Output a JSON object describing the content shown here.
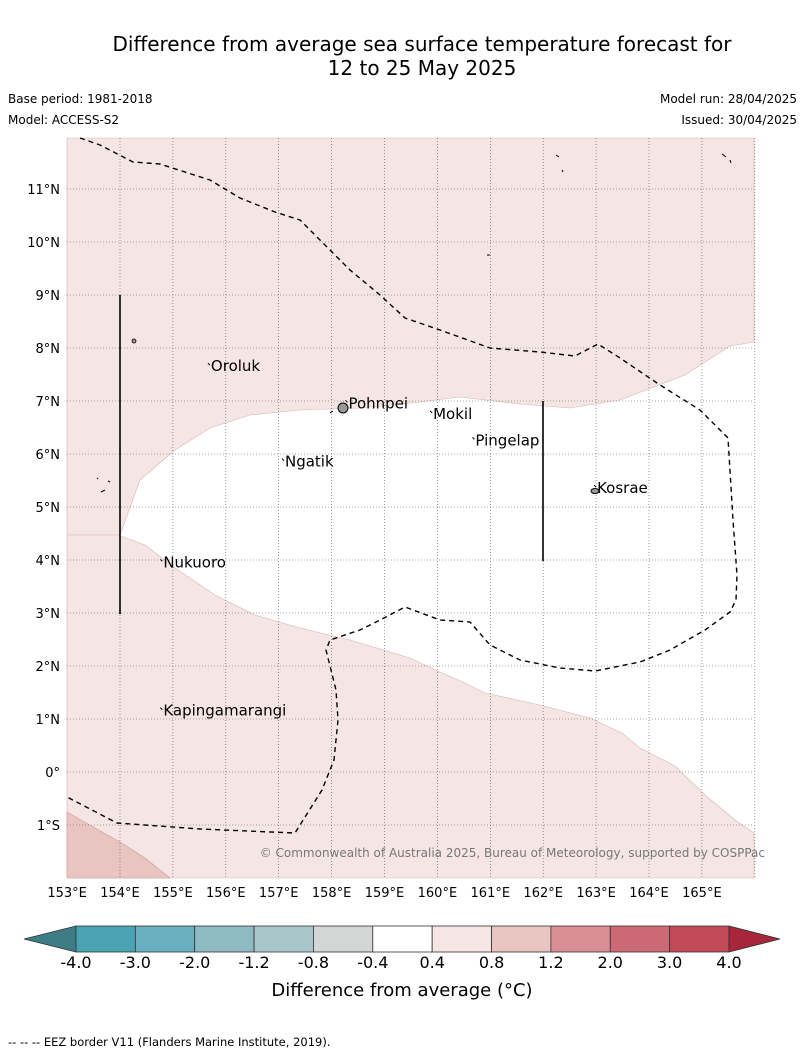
{
  "title_line1": "Difference from average sea surface temperature forecast for",
  "title_line2": "12 to 25 May 2025",
  "base_period": "Base period: 1981-2018",
  "model": "Model: ACCESS-S2",
  "model_run": "Model run: 28/04/2025",
  "issued": "Issued: 30/04/2025",
  "copyright": "© Commonwealth of Australia 2025, Bureau of Meteorology, supported by COSPPac",
  "lat_labels": [
    "11°N",
    "10°N",
    "9°N",
    "8°N",
    "7°N",
    "6°N",
    "5°N",
    "4°N",
    "3°N",
    "2°N",
    "1°N",
    "0°",
    "1°S"
  ],
  "lon_labels": [
    "153°E",
    "154°E",
    "155°E",
    "156°E",
    "157°E",
    "158°E",
    "159°E",
    "160°E",
    "161°E",
    "162°E",
    "163°E",
    "164°E",
    "165°E"
  ],
  "places": [
    {
      "name": "Oroluk",
      "lon": 155.7,
      "lat": 7.6
    },
    {
      "name": "Pohnpei",
      "lon": 158.3,
      "lat": 6.9
    },
    {
      "name": "Mokil",
      "lon": 159.9,
      "lat": 6.7
    },
    {
      "name": "Pingelap",
      "lon": 160.7,
      "lat": 6.2
    },
    {
      "name": "Ngatik",
      "lon": 157.1,
      "lat": 5.8
    },
    {
      "name": "Kosrae",
      "lon": 163.0,
      "lat": 5.3
    },
    {
      "name": "Nukuoro",
      "lon": 154.8,
      "lat": 3.9
    },
    {
      "name": "Kapingamarangi",
      "lon": 154.8,
      "lat": 1.1
    }
  ],
  "colorbar": {
    "ticks": [
      "-4.0",
      "-3.0",
      "-2.0",
      "-1.2",
      "-0.8",
      "-0.4",
      "0.4",
      "0.8",
      "1.2",
      "2.0",
      "3.0",
      "4.0"
    ],
    "colors": [
      "#3d7d85",
      "#4aa3b3",
      "#6aafbf",
      "#8ebac4",
      "#a9c7cb",
      "#d3d6d5",
      "#ffffff",
      "#f5e6e5",
      "#e8c5c0",
      "#d98f95",
      "#cb6a75",
      "#c04a58",
      "#a8253b"
    ],
    "label": "Difference from average (°C)"
  },
  "footnote": "-- -- -- EEZ border V11 (Flanders Marine Institute, 2019)."
}
